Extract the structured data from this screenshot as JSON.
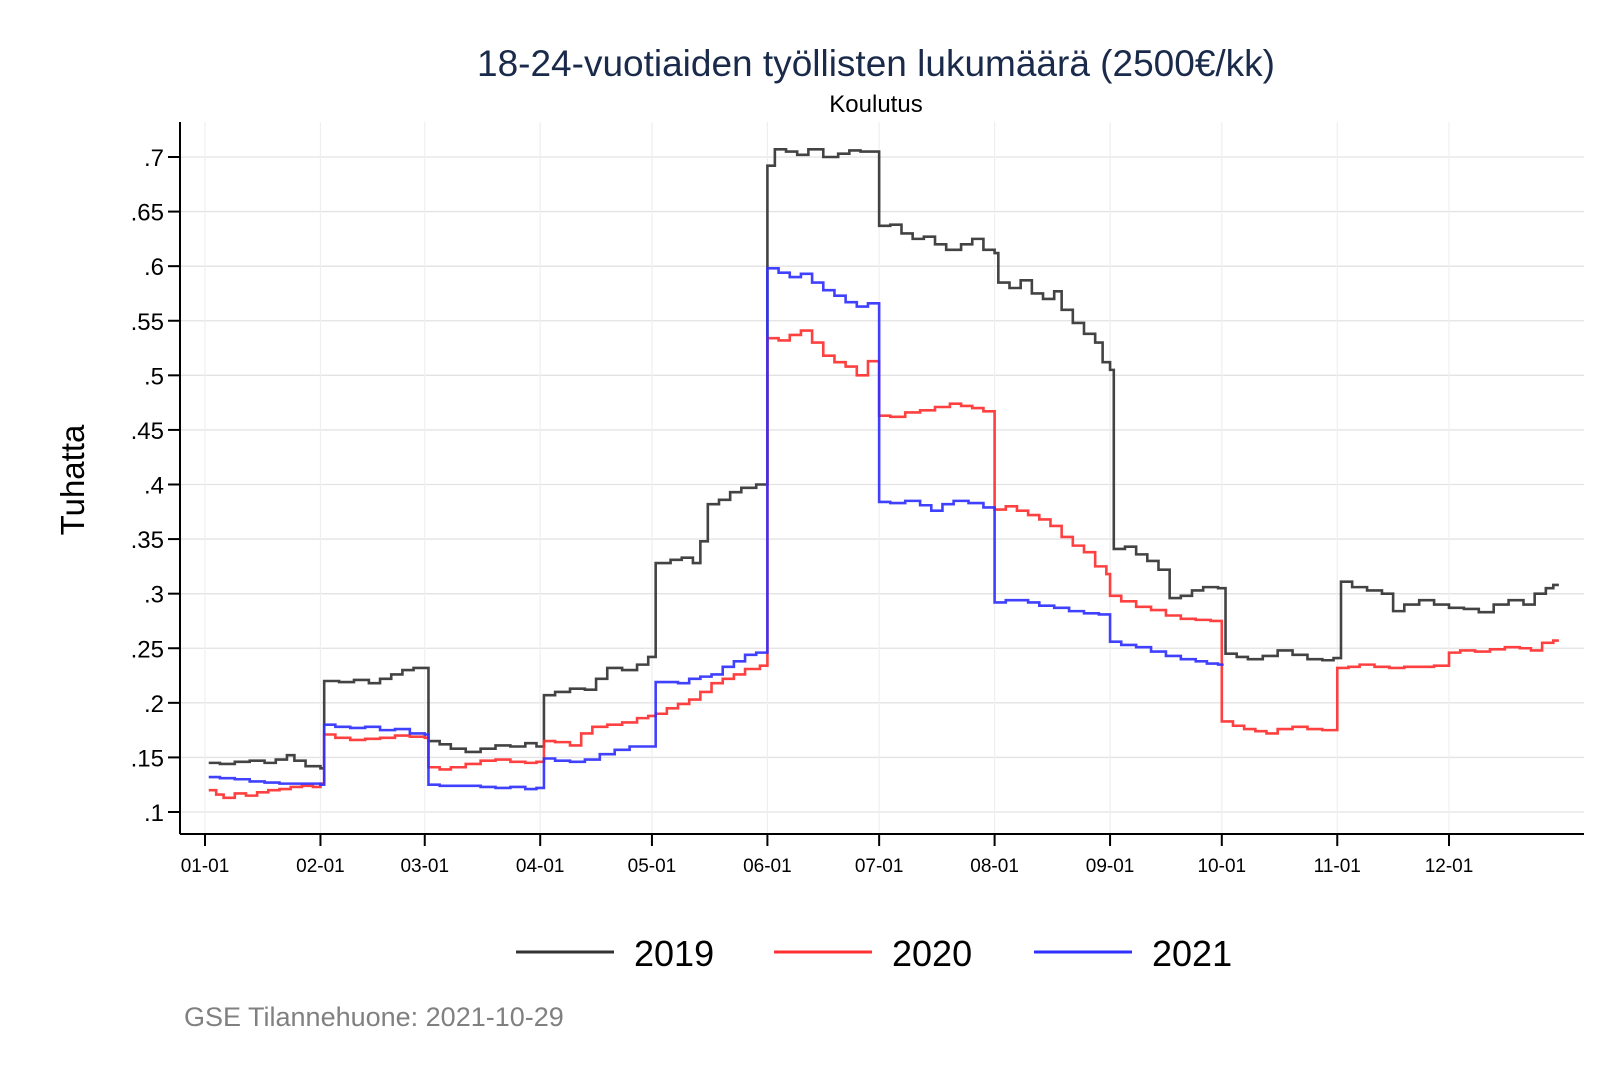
{
  "chart_data": {
    "type": "line",
    "title": "18-24-vuotiaiden työllisten lukumäärä (2500€/kk)",
    "subtitle": "Koulutus",
    "xlabel": "",
    "ylabel": "Tuhatta",
    "ylim": [
      0.08,
      0.725
    ],
    "xlim_days": [
      -6,
      370
    ],
    "yticks": [
      0.1,
      0.15,
      0.2,
      0.25,
      0.3,
      0.35,
      0.4,
      0.45,
      0.5,
      0.55,
      0.6,
      0.65,
      0.7
    ],
    "ytick_labels": [
      ".1",
      ".15",
      ".2",
      ".25",
      ".3",
      ".35",
      ".4",
      ".45",
      ".5",
      ".55",
      ".6",
      ".65",
      ".7"
    ],
    "xticks_days": [
      0,
      31,
      59,
      90,
      120,
      151,
      181,
      212,
      243,
      273,
      304,
      334
    ],
    "xtick_labels": [
      "01-01",
      "02-01",
      "03-01",
      "04-01",
      "05-01",
      "06-01",
      "07-01",
      "08-01",
      "09-01",
      "10-01",
      "11-01",
      "12-01"
    ],
    "grid": true,
    "legend_position": "bottom",
    "note": "GSE Tilannehuone: 2021-10-29",
    "series": [
      {
        "name": "2019",
        "color": "#333333",
        "steps": [
          [
            1,
            0.145
          ],
          [
            4,
            0.144
          ],
          [
            8,
            0.146
          ],
          [
            12,
            0.147
          ],
          [
            16,
            0.145
          ],
          [
            19,
            0.148
          ],
          [
            22,
            0.152
          ],
          [
            24,
            0.147
          ],
          [
            27,
            0.142
          ],
          [
            31,
            0.14
          ],
          [
            32,
            0.22
          ],
          [
            36,
            0.219
          ],
          [
            40,
            0.221
          ],
          [
            44,
            0.218
          ],
          [
            47,
            0.222
          ],
          [
            50,
            0.226
          ],
          [
            53,
            0.23
          ],
          [
            56,
            0.232
          ],
          [
            59,
            0.232
          ],
          [
            60,
            0.165
          ],
          [
            63,
            0.162
          ],
          [
            66,
            0.158
          ],
          [
            70,
            0.155
          ],
          [
            74,
            0.158
          ],
          [
            78,
            0.161
          ],
          [
            82,
            0.16
          ],
          [
            86,
            0.163
          ],
          [
            89,
            0.16
          ],
          [
            91,
            0.207
          ],
          [
            94,
            0.21
          ],
          [
            98,
            0.213
          ],
          [
            102,
            0.212
          ],
          [
            105,
            0.222
          ],
          [
            108,
            0.232
          ],
          [
            112,
            0.23
          ],
          [
            116,
            0.235
          ],
          [
            119,
            0.242
          ],
          [
            121,
            0.328
          ],
          [
            125,
            0.331
          ],
          [
            128,
            0.333
          ],
          [
            131,
            0.328
          ],
          [
            133,
            0.348
          ],
          [
            135,
            0.382
          ],
          [
            138,
            0.386
          ],
          [
            141,
            0.393
          ],
          [
            144,
            0.397
          ],
          [
            148,
            0.4
          ],
          [
            151,
            0.692
          ],
          [
            153,
            0.707
          ],
          [
            156,
            0.705
          ],
          [
            159,
            0.702
          ],
          [
            162,
            0.707
          ],
          [
            166,
            0.7
          ],
          [
            170,
            0.703
          ],
          [
            173,
            0.706
          ],
          [
            176,
            0.705
          ],
          [
            179,
            0.705
          ],
          [
            181,
            0.637
          ],
          [
            184,
            0.638
          ],
          [
            187,
            0.63
          ],
          [
            190,
            0.625
          ],
          [
            193,
            0.627
          ],
          [
            196,
            0.62
          ],
          [
            199,
            0.615
          ],
          [
            203,
            0.62
          ],
          [
            206,
            0.625
          ],
          [
            209,
            0.615
          ],
          [
            212,
            0.612
          ],
          [
            213,
            0.585
          ],
          [
            216,
            0.58
          ],
          [
            219,
            0.587
          ],
          [
            222,
            0.575
          ],
          [
            225,
            0.57
          ],
          [
            228,
            0.577
          ],
          [
            230,
            0.56
          ],
          [
            233,
            0.548
          ],
          [
            236,
            0.538
          ],
          [
            239,
            0.53
          ],
          [
            241,
            0.512
          ],
          [
            243,
            0.505
          ],
          [
            244,
            0.341
          ],
          [
            247,
            0.343
          ],
          [
            250,
            0.336
          ],
          [
            253,
            0.33
          ],
          [
            256,
            0.322
          ],
          [
            259,
            0.296
          ],
          [
            262,
            0.298
          ],
          [
            265,
            0.303
          ],
          [
            268,
            0.306
          ],
          [
            272,
            0.305
          ],
          [
            274,
            0.245
          ],
          [
            277,
            0.242
          ],
          [
            280,
            0.24
          ],
          [
            284,
            0.243
          ],
          [
            288,
            0.248
          ],
          [
            292,
            0.244
          ],
          [
            296,
            0.24
          ],
          [
            300,
            0.239
          ],
          [
            303,
            0.241
          ],
          [
            305,
            0.311
          ],
          [
            308,
            0.306
          ],
          [
            312,
            0.303
          ],
          [
            316,
            0.3
          ],
          [
            319,
            0.284
          ],
          [
            322,
            0.29
          ],
          [
            326,
            0.294
          ],
          [
            330,
            0.29
          ],
          [
            334,
            0.287
          ],
          [
            338,
            0.286
          ],
          [
            342,
            0.283
          ],
          [
            346,
            0.29
          ],
          [
            350,
            0.294
          ],
          [
            354,
            0.29
          ],
          [
            357,
            0.3
          ],
          [
            360,
            0.305
          ],
          [
            362,
            0.308
          ]
        ]
      },
      {
        "name": "2020",
        "color": "#ff3030",
        "steps": [
          [
            1,
            0.12
          ],
          [
            3,
            0.116
          ],
          [
            5,
            0.113
          ],
          [
            8,
            0.117
          ],
          [
            11,
            0.115
          ],
          [
            14,
            0.118
          ],
          [
            17,
            0.12
          ],
          [
            20,
            0.121
          ],
          [
            23,
            0.123
          ],
          [
            26,
            0.124
          ],
          [
            29,
            0.123
          ],
          [
            31,
            0.126
          ],
          [
            32,
            0.171
          ],
          [
            35,
            0.168
          ],
          [
            39,
            0.166
          ],
          [
            43,
            0.167
          ],
          [
            47,
            0.168
          ],
          [
            51,
            0.17
          ],
          [
            55,
            0.169
          ],
          [
            59,
            0.168
          ],
          [
            60,
            0.141
          ],
          [
            63,
            0.139
          ],
          [
            66,
            0.141
          ],
          [
            70,
            0.144
          ],
          [
            74,
            0.147
          ],
          [
            78,
            0.148
          ],
          [
            82,
            0.146
          ],
          [
            86,
            0.145
          ],
          [
            89,
            0.146
          ],
          [
            91,
            0.165
          ],
          [
            94,
            0.164
          ],
          [
            98,
            0.161
          ],
          [
            101,
            0.172
          ],
          [
            104,
            0.178
          ],
          [
            108,
            0.18
          ],
          [
            112,
            0.182
          ],
          [
            116,
            0.186
          ],
          [
            119,
            0.188
          ],
          [
            121,
            0.19
          ],
          [
            124,
            0.195
          ],
          [
            127,
            0.199
          ],
          [
            130,
            0.203
          ],
          [
            133,
            0.21
          ],
          [
            136,
            0.218
          ],
          [
            139,
            0.222
          ],
          [
            142,
            0.226
          ],
          [
            145,
            0.231
          ],
          [
            149,
            0.234
          ],
          [
            151,
            0.534
          ],
          [
            154,
            0.532
          ],
          [
            157,
            0.537
          ],
          [
            160,
            0.541
          ],
          [
            163,
            0.53
          ],
          [
            166,
            0.518
          ],
          [
            169,
            0.512
          ],
          [
            172,
            0.508
          ],
          [
            175,
            0.5
          ],
          [
            178,
            0.513
          ],
          [
            181,
            0.463
          ],
          [
            184,
            0.462
          ],
          [
            188,
            0.466
          ],
          [
            192,
            0.468
          ],
          [
            196,
            0.471
          ],
          [
            200,
            0.474
          ],
          [
            203,
            0.472
          ],
          [
            206,
            0.47
          ],
          [
            209,
            0.467
          ],
          [
            212,
            0.377
          ],
          [
            215,
            0.38
          ],
          [
            218,
            0.376
          ],
          [
            221,
            0.372
          ],
          [
            224,
            0.368
          ],
          [
            227,
            0.362
          ],
          [
            230,
            0.352
          ],
          [
            233,
            0.344
          ],
          [
            236,
            0.338
          ],
          [
            239,
            0.325
          ],
          [
            242,
            0.318
          ],
          [
            243,
            0.298
          ],
          [
            246,
            0.293
          ],
          [
            250,
            0.288
          ],
          [
            254,
            0.285
          ],
          [
            258,
            0.28
          ],
          [
            262,
            0.277
          ],
          [
            266,
            0.276
          ],
          [
            270,
            0.275
          ],
          [
            273,
            0.183
          ],
          [
            276,
            0.179
          ],
          [
            279,
            0.176
          ],
          [
            282,
            0.174
          ],
          [
            285,
            0.172
          ],
          [
            288,
            0.176
          ],
          [
            292,
            0.178
          ],
          [
            296,
            0.176
          ],
          [
            300,
            0.175
          ],
          [
            304,
            0.232
          ],
          [
            307,
            0.233
          ],
          [
            310,
            0.235
          ],
          [
            314,
            0.233
          ],
          [
            318,
            0.232
          ],
          [
            322,
            0.233
          ],
          [
            326,
            0.233
          ],
          [
            330,
            0.234
          ],
          [
            334,
            0.246
          ],
          [
            337,
            0.248
          ],
          [
            341,
            0.247
          ],
          [
            345,
            0.249
          ],
          [
            349,
            0.251
          ],
          [
            353,
            0.25
          ],
          [
            356,
            0.248
          ],
          [
            359,
            0.255
          ],
          [
            362,
            0.257
          ]
        ]
      },
      {
        "name": "2021",
        "color": "#3030ff",
        "steps": [
          [
            1,
            0.132
          ],
          [
            4,
            0.131
          ],
          [
            8,
            0.13
          ],
          [
            12,
            0.128
          ],
          [
            16,
            0.127
          ],
          [
            20,
            0.126
          ],
          [
            24,
            0.126
          ],
          [
            28,
            0.126
          ],
          [
            31,
            0.125
          ],
          [
            32,
            0.18
          ],
          [
            35,
            0.178
          ],
          [
            39,
            0.177
          ],
          [
            43,
            0.178
          ],
          [
            47,
            0.175
          ],
          [
            51,
            0.176
          ],
          [
            55,
            0.172
          ],
          [
            59,
            0.171
          ],
          [
            60,
            0.125
          ],
          [
            63,
            0.124
          ],
          [
            66,
            0.124
          ],
          [
            70,
            0.124
          ],
          [
            74,
            0.123
          ],
          [
            78,
            0.122
          ],
          [
            82,
            0.123
          ],
          [
            86,
            0.121
          ],
          [
            89,
            0.122
          ],
          [
            91,
            0.149
          ],
          [
            94,
            0.147
          ],
          [
            98,
            0.146
          ],
          [
            102,
            0.148
          ],
          [
            106,
            0.153
          ],
          [
            110,
            0.157
          ],
          [
            114,
            0.16
          ],
          [
            118,
            0.16
          ],
          [
            121,
            0.219
          ],
          [
            124,
            0.219
          ],
          [
            127,
            0.218
          ],
          [
            130,
            0.222
          ],
          [
            133,
            0.224
          ],
          [
            136,
            0.226
          ],
          [
            139,
            0.233
          ],
          [
            142,
            0.238
          ],
          [
            145,
            0.244
          ],
          [
            148,
            0.246
          ],
          [
            151,
            0.598
          ],
          [
            154,
            0.594
          ],
          [
            157,
            0.59
          ],
          [
            160,
            0.593
          ],
          [
            163,
            0.585
          ],
          [
            166,
            0.578
          ],
          [
            169,
            0.573
          ],
          [
            172,
            0.567
          ],
          [
            175,
            0.563
          ],
          [
            178,
            0.566
          ],
          [
            181,
            0.384
          ],
          [
            184,
            0.383
          ],
          [
            188,
            0.385
          ],
          [
            192,
            0.381
          ],
          [
            195,
            0.376
          ],
          [
            198,
            0.382
          ],
          [
            201,
            0.385
          ],
          [
            205,
            0.383
          ],
          [
            209,
            0.379
          ],
          [
            212,
            0.292
          ],
          [
            215,
            0.294
          ],
          [
            218,
            0.294
          ],
          [
            221,
            0.292
          ],
          [
            224,
            0.289
          ],
          [
            228,
            0.287
          ],
          [
            232,
            0.284
          ],
          [
            236,
            0.282
          ],
          [
            240,
            0.281
          ],
          [
            243,
            0.256
          ],
          [
            246,
            0.253
          ],
          [
            250,
            0.251
          ],
          [
            254,
            0.247
          ],
          [
            258,
            0.243
          ],
          [
            262,
            0.24
          ],
          [
            266,
            0.238
          ],
          [
            269,
            0.236
          ],
          [
            272,
            0.235
          ]
        ]
      }
    ]
  }
}
